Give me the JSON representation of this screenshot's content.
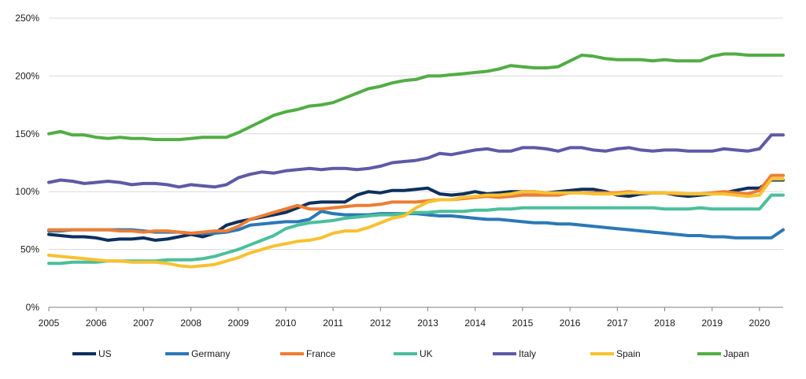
{
  "chart_data": {
    "type": "line",
    "title": "",
    "xlabel": "",
    "ylabel": "",
    "ylim": [
      0,
      250
    ],
    "yticks": [
      "0%",
      "50%",
      "100%",
      "150%",
      "200%",
      "250%"
    ],
    "ytick_values": [
      0,
      50,
      100,
      150,
      200,
      250
    ],
    "xlim": [
      2005,
      2020.5
    ],
    "xticks": [
      "2005",
      "2006",
      "2007",
      "2008",
      "2009",
      "2010",
      "2011",
      "2012",
      "2013",
      "2014",
      "2015",
      "2016",
      "2017",
      "2018",
      "2019",
      "2020"
    ],
    "xtick_values": [
      2005,
      2006,
      2007,
      2008,
      2009,
      2010,
      2011,
      2012,
      2013,
      2014,
      2015,
      2016,
      2017,
      2018,
      2019,
      2020
    ],
    "grid": "horizontal",
    "legend_position": "bottom",
    "x": [
      2005.0,
      2005.25,
      2005.5,
      2005.75,
      2006.0,
      2006.25,
      2006.5,
      2006.75,
      2007.0,
      2007.25,
      2007.5,
      2007.75,
      2008.0,
      2008.25,
      2008.5,
      2008.75,
      2009.0,
      2009.25,
      2009.5,
      2009.75,
      2010.0,
      2010.25,
      2010.5,
      2010.75,
      2011.0,
      2011.25,
      2011.5,
      2011.75,
      2012.0,
      2012.25,
      2012.5,
      2012.75,
      2013.0,
      2013.25,
      2013.5,
      2013.75,
      2014.0,
      2014.25,
      2014.5,
      2014.75,
      2015.0,
      2015.25,
      2015.5,
      2015.75,
      2016.0,
      2016.25,
      2016.5,
      2016.75,
      2017.0,
      2017.25,
      2017.5,
      2017.75,
      2018.0,
      2018.25,
      2018.5,
      2018.75,
      2019.0,
      2019.25,
      2019.5,
      2019.75,
      2020.0,
      2020.25,
      2020.5
    ],
    "series": [
      {
        "name": "US",
        "color": "#0d2f5e",
        "values": [
          63,
          62,
          61,
          61,
          60,
          58,
          59,
          59,
          60,
          58,
          59,
          61,
          63,
          61,
          64,
          71,
          74,
          76,
          78,
          80,
          82,
          86,
          90,
          91,
          91,
          91,
          97,
          100,
          99,
          101,
          101,
          102,
          103,
          98,
          97,
          98,
          100,
          98,
          99,
          100,
          100,
          100,
          99,
          100,
          101,
          102,
          102,
          100,
          97,
          96,
          98,
          99,
          99,
          97,
          96,
          97,
          98,
          99,
          101,
          103,
          103,
          110,
          110
        ]
      },
      {
        "name": "Germany",
        "color": "#2c78b6",
        "values": [
          66,
          66,
          67,
          67,
          67,
          67,
          67,
          67,
          66,
          65,
          65,
          65,
          64,
          64,
          64,
          65,
          67,
          71,
          72,
          73,
          74,
          74,
          76,
          83,
          81,
          80,
          80,
          80,
          81,
          81,
          81,
          81,
          80,
          79,
          79,
          78,
          77,
          76,
          76,
          75,
          74,
          73,
          73,
          72,
          72,
          71,
          70,
          69,
          68,
          67,
          66,
          65,
          64,
          63,
          62,
          62,
          61,
          61,
          60,
          60,
          60,
          60,
          67
        ]
      },
      {
        "name": "France",
        "color": "#ee7d31",
        "values": [
          67,
          67,
          67,
          67,
          67,
          67,
          66,
          66,
          65,
          66,
          66,
          65,
          64,
          65,
          66,
          66,
          70,
          76,
          79,
          82,
          85,
          88,
          85,
          85,
          86,
          87,
          88,
          88,
          89,
          91,
          91,
          91,
          92,
          93,
          93,
          94,
          95,
          96,
          95,
          96,
          97,
          97,
          97,
          97,
          99,
          99,
          99,
          99,
          99,
          100,
          99,
          99,
          99,
          98,
          98,
          98,
          99,
          100,
          99,
          98,
          101,
          114,
          114
        ]
      },
      {
        "name": "UK",
        "color": "#4bbf9b",
        "values": [
          38,
          38,
          39,
          39,
          39,
          40,
          40,
          40,
          40,
          40,
          41,
          41,
          41,
          42,
          44,
          47,
          50,
          54,
          58,
          62,
          68,
          71,
          73,
          74,
          75,
          77,
          78,
          79,
          80,
          80,
          81,
          82,
          82,
          83,
          83,
          83,
          84,
          84,
          85,
          85,
          86,
          86,
          86,
          86,
          86,
          86,
          86,
          86,
          86,
          86,
          86,
          86,
          85,
          85,
          85,
          86,
          85,
          85,
          85,
          85,
          85,
          97,
          97
        ]
      },
      {
        "name": "Italy",
        "color": "#5d5aa6",
        "values": [
          108,
          110,
          109,
          107,
          108,
          109,
          108,
          106,
          107,
          107,
          106,
          104,
          106,
          105,
          104,
          106,
          112,
          115,
          117,
          116,
          118,
          119,
          120,
          119,
          120,
          120,
          119,
          120,
          122,
          125,
          126,
          127,
          129,
          133,
          132,
          134,
          136,
          137,
          135,
          135,
          138,
          138,
          137,
          135,
          138,
          138,
          136,
          135,
          137,
          138,
          136,
          135,
          136,
          136,
          135,
          135,
          135,
          137,
          136,
          135,
          137,
          149,
          149
        ]
      },
      {
        "name": "Spain",
        "color": "#f8c131",
        "values": [
          45,
          44,
          43,
          42,
          41,
          40,
          40,
          39,
          39,
          39,
          38,
          36,
          35,
          36,
          37,
          40,
          43,
          47,
          50,
          53,
          55,
          57,
          58,
          60,
          64,
          66,
          66,
          69,
          73,
          77,
          79,
          86,
          91,
          93,
          93,
          95,
          96,
          97,
          97,
          98,
          100,
          100,
          99,
          99,
          99,
          99,
          98,
          98,
          98,
          99,
          99,
          99,
          99,
          99,
          98,
          98,
          98,
          98,
          97,
          96,
          97,
          111,
          111
        ]
      },
      {
        "name": "Japan",
        "color": "#52ad44",
        "values": [
          150,
          152,
          149,
          149,
          147,
          146,
          147,
          146,
          146,
          145,
          145,
          145,
          146,
          147,
          147,
          147,
          151,
          156,
          161,
          166,
          169,
          171,
          174,
          175,
          177,
          181,
          185,
          189,
          191,
          194,
          196,
          197,
          200,
          200,
          201,
          202,
          203,
          204,
          206,
          209,
          208,
          207,
          207,
          208,
          213,
          218,
          217,
          215,
          214,
          214,
          214,
          213,
          214,
          213,
          213,
          213,
          217,
          219,
          219,
          218,
          218,
          218,
          218
        ]
      }
    ]
  }
}
